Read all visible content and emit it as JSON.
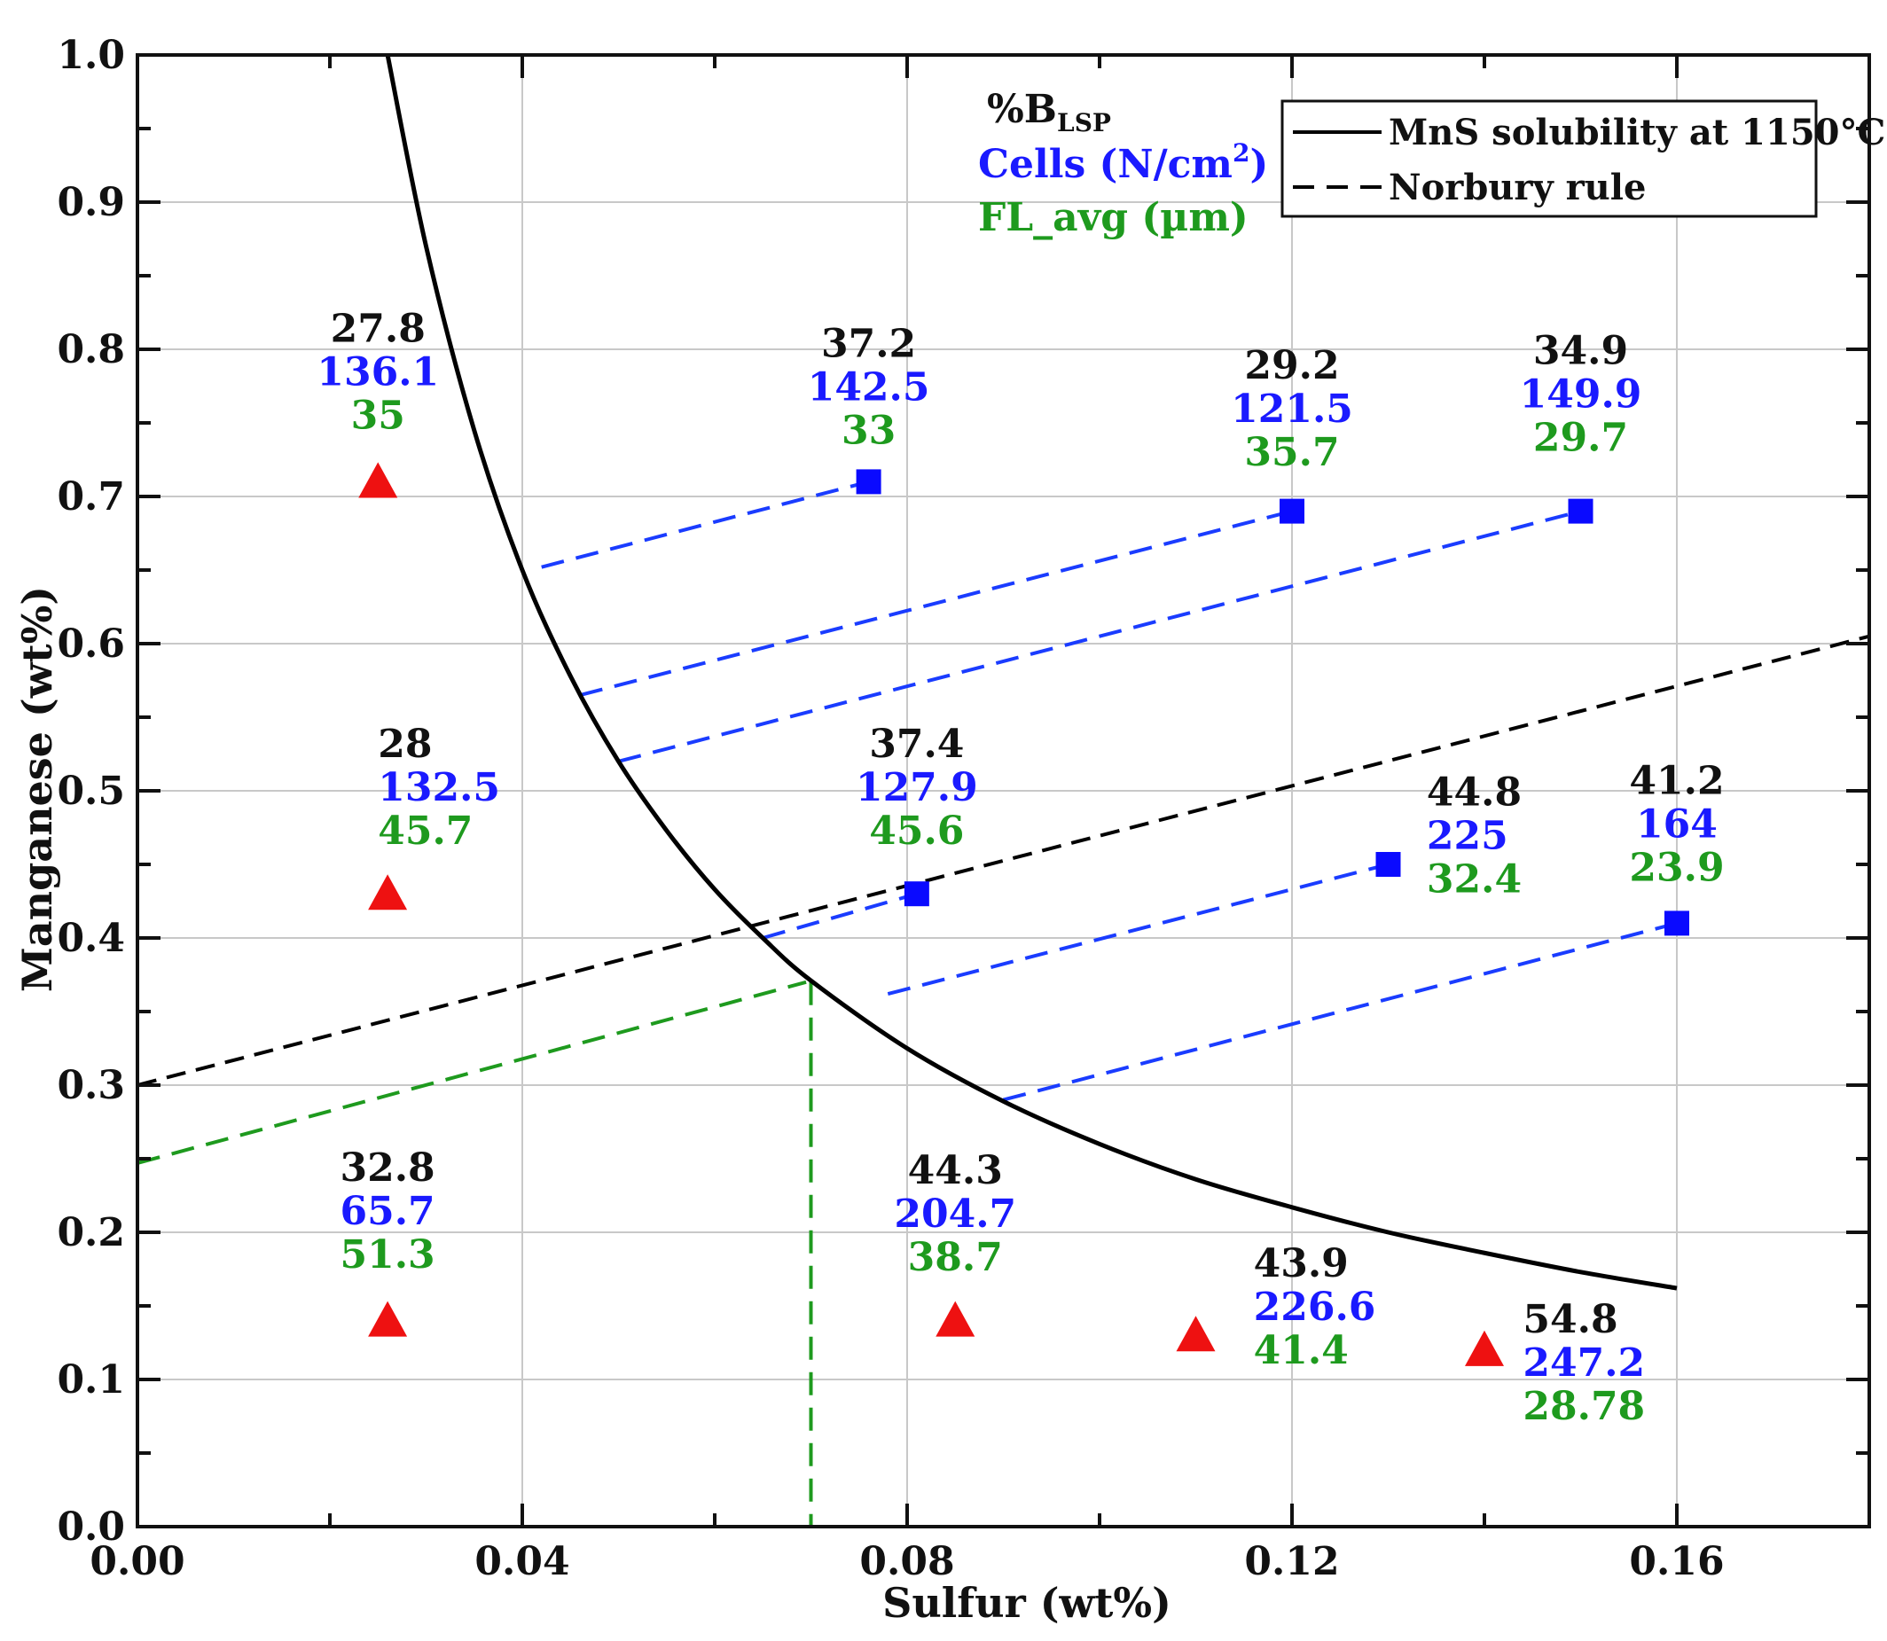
{
  "chart_data": {
    "type": "scatter",
    "xlabel": "Sulfur (wt%)",
    "ylabel": "Manganese (wt%)",
    "xlim": [
      0,
      0.18
    ],
    "ylim": [
      0,
      1.0
    ],
    "x_ticks": [
      {
        "value": 0.0,
        "label": "0.00"
      },
      {
        "value": 0.04,
        "label": "0.04"
      },
      {
        "value": 0.08,
        "label": "0.08"
      },
      {
        "value": 0.12,
        "label": "0.12"
      },
      {
        "value": 0.16,
        "label": "0.16"
      }
    ],
    "y_ticks": [
      {
        "value": 0.0,
        "label": "0.0"
      },
      {
        "value": 0.1,
        "label": "0.1"
      },
      {
        "value": 0.2,
        "label": "0.2"
      },
      {
        "value": 0.3,
        "label": "0.3"
      },
      {
        "value": 0.4,
        "label": "0.4"
      },
      {
        "value": 0.5,
        "label": "0.5"
      },
      {
        "value": 0.6,
        "label": "0.6"
      },
      {
        "value": 0.7,
        "label": "0.7"
      },
      {
        "value": 0.8,
        "label": "0.8"
      },
      {
        "value": 0.9,
        "label": "0.9"
      },
      {
        "value": 1.0,
        "label": "1.0"
      }
    ],
    "grid": true,
    "colors": {
      "lsp": "#111111",
      "cells": "#1a1aff",
      "fl": "#1e9a1e",
      "triangle": "#ee1111",
      "square": "#0a0aff",
      "projection": "#1a3cff",
      "green_guide": "#1e9a1e"
    },
    "key": {
      "lsp_prefix": "%B",
      "lsp_sub": "LSP",
      "cells_label": "Cells (N/cm",
      "cells_sup": "2",
      "cells_close": ")",
      "fl_label": "FL_avg (µm)"
    },
    "legend": {
      "position": "top-right",
      "entries": [
        {
          "label": "MnS solubility at 1150°C",
          "style": "solid",
          "color": "#000000"
        },
        {
          "label": "Norbury rule",
          "style": "dashed",
          "color": "#000000"
        }
      ]
    },
    "mns_solubility_curve": [
      {
        "x": 0.026,
        "y": 1.0
      },
      {
        "x": 0.03,
        "y": 0.87
      },
      {
        "x": 0.035,
        "y": 0.745
      },
      {
        "x": 0.04,
        "y": 0.65
      },
      {
        "x": 0.045,
        "y": 0.578
      },
      {
        "x": 0.05,
        "y": 0.52
      },
      {
        "x": 0.055,
        "y": 0.473
      },
      {
        "x": 0.06,
        "y": 0.433
      },
      {
        "x": 0.065,
        "y": 0.4
      },
      {
        "x": 0.07,
        "y": 0.371
      },
      {
        "x": 0.08,
        "y": 0.325
      },
      {
        "x": 0.09,
        "y": 0.289
      },
      {
        "x": 0.1,
        "y": 0.26
      },
      {
        "x": 0.11,
        "y": 0.236
      },
      {
        "x": 0.12,
        "y": 0.217
      },
      {
        "x": 0.13,
        "y": 0.2
      },
      {
        "x": 0.14,
        "y": 0.186
      },
      {
        "x": 0.15,
        "y": 0.173
      },
      {
        "x": 0.16,
        "y": 0.162
      }
    ],
    "norbury_rule": {
      "x_start": 0.0,
      "y_start": 0.3,
      "x_end": 0.18,
      "y_end": 0.605
    },
    "green_guide": {
      "slope_line": [
        {
          "x": 0.0,
          "y": 0.247
        },
        {
          "x": 0.0695,
          "y": 0.37
        }
      ],
      "vertical_line": [
        {
          "x": 0.07,
          "y": 0.37
        },
        {
          "x": 0.07,
          "y": 0.0
        }
      ]
    },
    "projection_lines": [
      {
        "from": {
          "x": 0.042,
          "y": 0.652
        },
        "to": {
          "x": 0.076,
          "y": 0.71
        }
      },
      {
        "from": {
          "x": 0.046,
          "y": 0.565
        },
        "to": {
          "x": 0.12,
          "y": 0.69
        }
      },
      {
        "from": {
          "x": 0.05,
          "y": 0.52
        },
        "to": {
          "x": 0.15,
          "y": 0.69
        }
      },
      {
        "from": {
          "x": 0.065,
          "y": 0.4
        },
        "to": {
          "x": 0.081,
          "y": 0.43
        }
      },
      {
        "from": {
          "x": 0.078,
          "y": 0.362
        },
        "to": {
          "x": 0.13,
          "y": 0.45
        }
      },
      {
        "from": {
          "x": 0.09,
          "y": 0.29
        },
        "to": {
          "x": 0.16,
          "y": 0.41
        }
      }
    ],
    "points": [
      {
        "marker": "triangle",
        "x": 0.025,
        "y": 0.71,
        "lsp": "27.8",
        "cells": "136.1",
        "fl": "35",
        "label_x": 0.025,
        "label_y": 0.805,
        "label_align": "middle"
      },
      {
        "marker": "triangle",
        "x": 0.026,
        "y": 0.43,
        "lsp": "28",
        "cells": "132.5",
        "fl": "45.7",
        "label_x": 0.025,
        "label_y": 0.523,
        "label_align": "start"
      },
      {
        "marker": "triangle",
        "x": 0.026,
        "y": 0.14,
        "lsp": "32.8",
        "cells": "65.7",
        "fl": "51.3",
        "label_x": 0.026,
        "label_y": 0.235,
        "label_align": "middle"
      },
      {
        "marker": "triangle",
        "x": 0.085,
        "y": 0.14,
        "lsp": "44.3",
        "cells": "204.7",
        "fl": "38.7",
        "label_x": 0.085,
        "label_y": 0.233,
        "label_align": "middle"
      },
      {
        "marker": "triangle",
        "x": 0.11,
        "y": 0.13,
        "lsp": "43.9",
        "cells": "226.6",
        "fl": "41.4",
        "label_x": 0.116,
        "label_y": 0.17,
        "label_align": "start"
      },
      {
        "marker": "triangle",
        "x": 0.14,
        "y": 0.12,
        "lsp": "54.8",
        "cells": "247.2",
        "fl": "28.78",
        "label_x": 0.144,
        "label_y": 0.132,
        "label_align": "start"
      },
      {
        "marker": "square",
        "x": 0.076,
        "y": 0.71,
        "lsp": "37.2",
        "cells": "142.5",
        "fl": "33",
        "label_x": 0.076,
        "label_y": 0.795,
        "label_align": "middle"
      },
      {
        "marker": "square",
        "x": 0.12,
        "y": 0.69,
        "lsp": "29.2",
        "cells": "121.5",
        "fl": "35.7",
        "label_x": 0.12,
        "label_y": 0.78,
        "label_align": "middle"
      },
      {
        "marker": "square",
        "x": 0.15,
        "y": 0.69,
        "lsp": "34.9",
        "cells": "149.9",
        "fl": "29.7",
        "label_x": 0.15,
        "label_y": 0.79,
        "label_align": "middle"
      },
      {
        "marker": "square",
        "x": 0.081,
        "y": 0.43,
        "lsp": "37.4",
        "cells": "127.9",
        "fl": "45.6",
        "label_x": 0.081,
        "label_y": 0.523,
        "label_align": "middle"
      },
      {
        "marker": "square",
        "x": 0.13,
        "y": 0.45,
        "lsp": "44.8",
        "cells": "225",
        "fl": "32.4",
        "label_x": 0.134,
        "label_y": 0.49,
        "label_align": "start"
      },
      {
        "marker": "square",
        "x": 0.16,
        "y": 0.41,
        "lsp": "41.2",
        "cells": "164",
        "fl": "23.9",
        "label_x": 0.16,
        "label_y": 0.498,
        "label_align": "middle"
      }
    ]
  }
}
